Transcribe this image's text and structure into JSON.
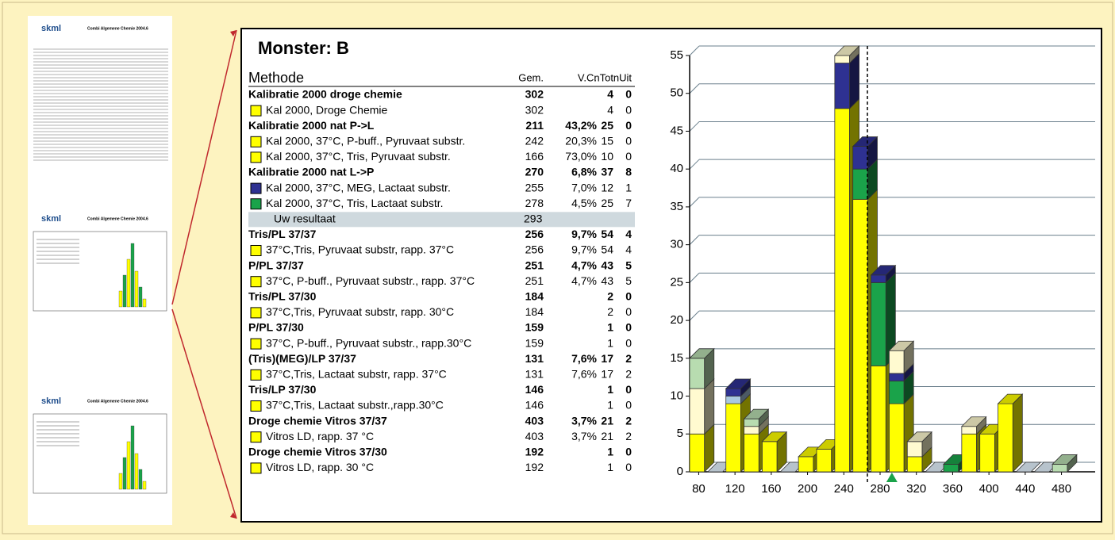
{
  "thumbnails": [
    {
      "logo": "skml",
      "title": "Combi Algemene Chemie 2004.6"
    },
    {
      "logo": "skml",
      "title": "Combi Algemene Chemie 2004.6"
    },
    {
      "logo": "skml",
      "title": "Combi Algemene Chemie 2004.6"
    }
  ],
  "title": "Monster: B",
  "table": {
    "columns": [
      "Methode",
      "Gem.",
      "V.C.",
      "nTot",
      "nUit"
    ],
    "rows": [
      {
        "kind": "group",
        "cells": [
          "Kalibratie 2000 droge chemie",
          302,
          null,
          4,
          0
        ]
      },
      {
        "kind": "item",
        "color": "#ffff00",
        "cells": [
          "Kal 2000, Droge Chemie",
          302,
          null,
          4,
          0
        ]
      },
      {
        "kind": "group",
        "cells": [
          "Kalibratie 2000 nat P->L",
          211,
          "43,2%",
          25,
          0
        ]
      },
      {
        "kind": "item",
        "color": "#ffff00",
        "cells": [
          "Kal 2000, 37°C, P-buff., Pyruvaat substr.",
          242,
          "20,3%",
          15,
          0
        ]
      },
      {
        "kind": "item",
        "color": "#ffff00",
        "cells": [
          "Kal 2000, 37°C, Tris, Pyruvaat substr.",
          166,
          "73,0%",
          10,
          0
        ]
      },
      {
        "kind": "group",
        "cells": [
          "Kalibratie 2000 nat L->P",
          270,
          "6,8%",
          37,
          8
        ]
      },
      {
        "kind": "item",
        "color": "#2e3192",
        "cells": [
          "Kal 2000, 37°C, MEG, Lactaat substr.",
          255,
          "7,0%",
          12,
          1
        ]
      },
      {
        "kind": "item",
        "color": "#1aa34a",
        "cells": [
          "Kal 2000, 37°C, Tris, Lactaat substr.",
          278,
          "4,5%",
          25,
          7
        ]
      },
      {
        "kind": "result",
        "cells": [
          "Uw resultaat",
          293,
          null,
          null,
          null
        ]
      },
      {
        "kind": "group",
        "cells": [
          "Tris/PL 37/37",
          256,
          "9,7%",
          54,
          4
        ]
      },
      {
        "kind": "item",
        "color": "#ffff00",
        "cells": [
          "37°C,Tris, Pyruvaat substr, rapp. 37°C",
          256,
          "9,7%",
          54,
          4
        ]
      },
      {
        "kind": "group",
        "cells": [
          "P/PL 37/37",
          251,
          "4,7%",
          43,
          5
        ]
      },
      {
        "kind": "item",
        "color": "#ffff00",
        "cells": [
          "37°C, P-buff., Pyruvaat substr., rapp. 37°C",
          251,
          "4,7%",
          43,
          5
        ]
      },
      {
        "kind": "group",
        "cells": [
          "Tris/PL 37/30",
          184,
          null,
          2,
          0
        ]
      },
      {
        "kind": "item",
        "color": "#ffff00",
        "cells": [
          "37°C,Tris, Pyruvaat substr, rapp. 30°C",
          184,
          null,
          2,
          0
        ]
      },
      {
        "kind": "group",
        "cells": [
          "P/PL 37/30",
          159,
          null,
          1,
          0
        ]
      },
      {
        "kind": "item",
        "color": "#ffff00",
        "cells": [
          "37°C, P-buff., Pyruvaat substr., rapp.30°C",
          159,
          null,
          1,
          0
        ]
      },
      {
        "kind": "group",
        "cells": [
          "(Tris)(MEG)/LP 37/37",
          131,
          "7,6%",
          17,
          2
        ]
      },
      {
        "kind": "item",
        "color": "#ffff00",
        "cells": [
          "37°C,Tris, Lactaat substr, rapp. 37°C",
          131,
          "7,6%",
          17,
          2
        ]
      },
      {
        "kind": "group",
        "cells": [
          "Tris/LP 37/30",
          146,
          null,
          1,
          0
        ]
      },
      {
        "kind": "item",
        "color": "#ffff00",
        "cells": [
          "37°C,Tris, Lactaat substr.,rapp.30°C",
          146,
          null,
          1,
          0
        ]
      },
      {
        "kind": "group",
        "cells": [
          "Droge chemie Vitros 37/37",
          403,
          "3,7%",
          21,
          2
        ]
      },
      {
        "kind": "item",
        "color": "#ffff00",
        "cells": [
          "Vitros LD, rapp. 37 °C",
          403,
          "3,7%",
          21,
          2
        ]
      },
      {
        "kind": "group",
        "cells": [
          "Droge chemie Vitros 37/30",
          192,
          null,
          1,
          0
        ]
      },
      {
        "kind": "item",
        "color": "#ffff00",
        "cells": [
          "Vitros LD, rapp. 30 °C",
          192,
          null,
          1,
          0
        ]
      }
    ]
  },
  "chart_data": {
    "type": "bar",
    "stacked": true,
    "x": [
      80,
      100,
      120,
      140,
      160,
      180,
      200,
      220,
      240,
      260,
      280,
      300,
      320,
      340,
      360,
      380,
      400,
      420,
      440,
      460,
      480
    ],
    "xlim": [
      70,
      490
    ],
    "xticks": [
      80,
      120,
      160,
      200,
      240,
      280,
      320,
      360,
      400,
      440,
      480
    ],
    "ylim": [
      0,
      55
    ],
    "yticks": [
      0,
      5,
      10,
      15,
      20,
      25,
      30,
      35,
      40,
      45,
      50,
      55
    ],
    "grid": true,
    "reference_line": 266,
    "series": [
      {
        "color": "#ffff00",
        "values": [
          5,
          0,
          9,
          5,
          4,
          0,
          2,
          3,
          48,
          36,
          14,
          9,
          2,
          0,
          0,
          5,
          5,
          9,
          0,
          0,
          0
        ]
      },
      {
        "color": "#1aa34a",
        "values": [
          0,
          0,
          0,
          0,
          0,
          0,
          0,
          0,
          0,
          4,
          11,
          3,
          0,
          0,
          1,
          0,
          0,
          0,
          0,
          0,
          0
        ]
      },
      {
        "color": "#a9c8e0",
        "values": [
          0,
          0,
          1,
          0,
          0,
          0,
          0,
          0,
          0,
          0,
          0,
          0,
          0,
          0,
          0,
          0,
          0,
          0,
          0,
          0,
          0
        ]
      },
      {
        "color": "#2e3192",
        "values": [
          0,
          0,
          1,
          0,
          0,
          0,
          0,
          0,
          6,
          3,
          1,
          1,
          0,
          0,
          0,
          0,
          0,
          0,
          0,
          0,
          0
        ]
      },
      {
        "color": "#fffad0",
        "values": [
          6,
          0,
          0,
          1,
          0,
          0,
          0,
          0,
          1,
          0,
          0,
          3,
          2,
          0,
          0,
          1,
          0,
          0,
          0,
          0,
          0
        ]
      },
      {
        "color": "#b8dcb0",
        "values": [
          4,
          0,
          0,
          1,
          0,
          0,
          0,
          0,
          0,
          0,
          0,
          0,
          0,
          0,
          0,
          0,
          0,
          0,
          0,
          0,
          1
        ]
      }
    ]
  }
}
